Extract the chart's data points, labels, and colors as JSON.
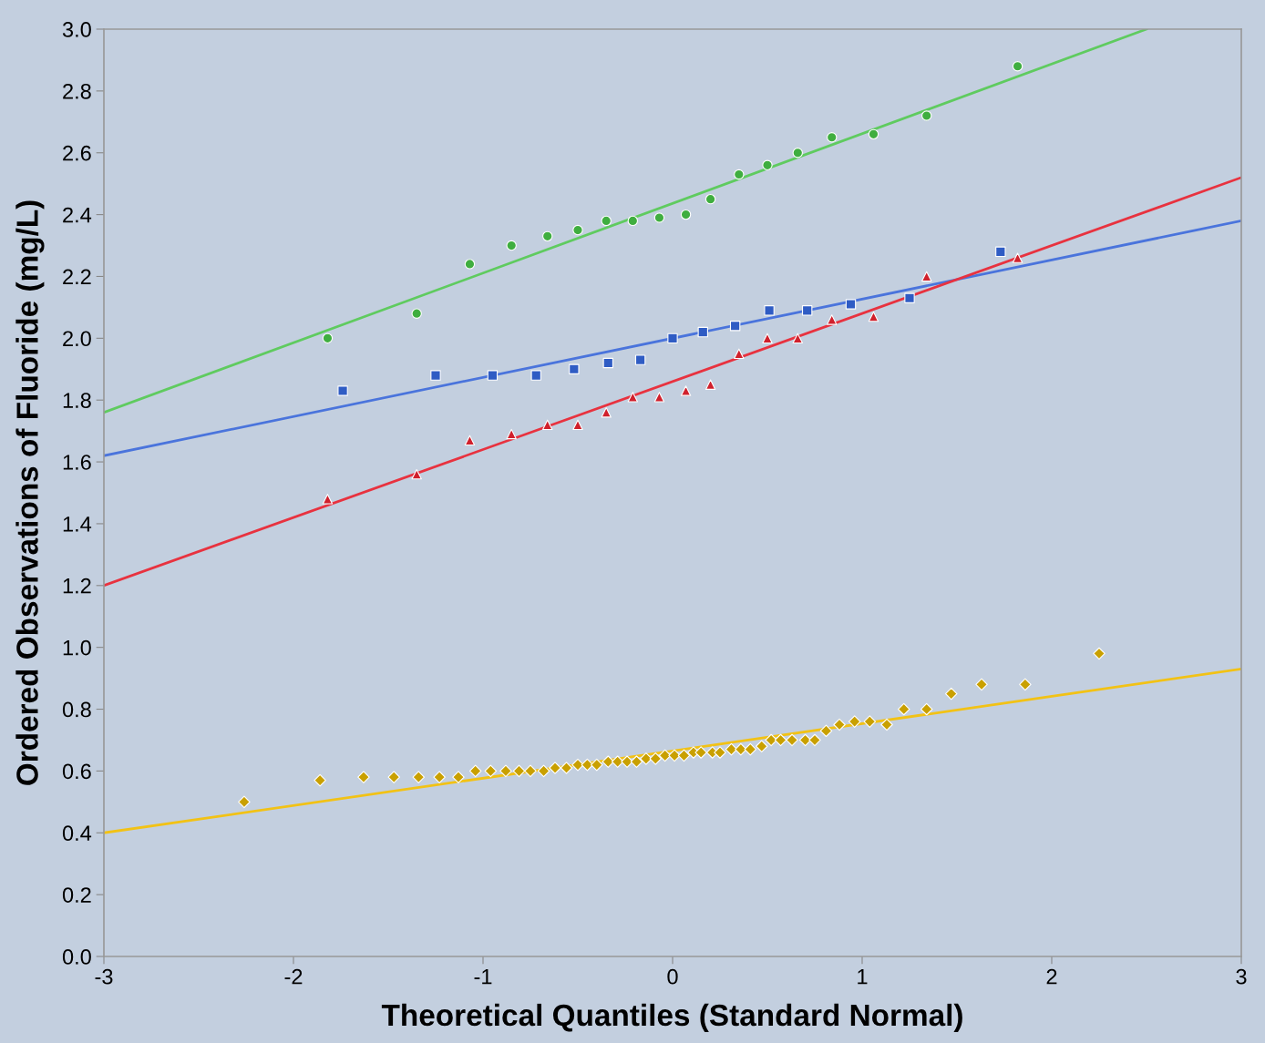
{
  "chart_data": {
    "type": "scatter",
    "xlabel": "Theoretical Quantiles (Standard Normal)",
    "ylabel": "Ordered Observations of Fluoride (mg/L)",
    "xlim": [
      -3,
      3
    ],
    "xticks": [
      -3,
      -2,
      -1,
      0,
      1,
      2,
      3
    ],
    "ylim": [
      0,
      3
    ],
    "yticks": [
      {
        "value": 0,
        "label": "0.0"
      },
      0.2,
      0.4,
      0.6,
      0.8,
      {
        "value": 1,
        "label": "1.0"
      },
      1.2,
      1.4,
      1.6,
      1.8,
      {
        "value": 2,
        "label": "2.0"
      },
      2.2,
      2.4,
      2.6,
      2.8,
      {
        "value": 3,
        "label": "3.0"
      }
    ],
    "grid": false,
    "series": [
      {
        "type": "line",
        "color": "#5fcb5f",
        "x": [
          -3,
          2.5
        ],
        "values": [
          1.76,
          3.0
        ]
      },
      {
        "type": "line",
        "color": "#4a74dc",
        "x": [
          -3,
          3
        ],
        "values": [
          1.62,
          2.38
        ]
      },
      {
        "type": "line",
        "color": "#e8323f",
        "x": [
          -3,
          3
        ],
        "values": [
          1.2,
          2.52
        ]
      },
      {
        "type": "line",
        "color": "#f2c215",
        "x": [
          -3,
          3
        ],
        "values": [
          0.4,
          0.93
        ]
      },
      {
        "marker": "circle",
        "color": "#3fae3f",
        "x": [
          -1.82,
          -1.35,
          -1.07,
          -0.85,
          -0.66,
          -0.5,
          -0.35,
          -0.21,
          -0.07,
          0.07,
          0.2,
          0.35,
          0.5,
          0.66,
          0.84,
          1.06,
          1.34,
          1.82
        ],
        "values": [
          2.0,
          2.08,
          2.24,
          2.3,
          2.33,
          2.35,
          2.38,
          2.38,
          2.39,
          2.4,
          2.45,
          2.53,
          2.56,
          2.6,
          2.65,
          2.66,
          2.72,
          2.88
        ]
      },
      {
        "marker": "square",
        "color": "#2f5cc4",
        "x": [
          -1.74,
          -1.25,
          -0.95,
          -0.72,
          -0.52,
          -0.34,
          -0.17,
          0.0,
          0.16,
          0.33,
          0.51,
          0.71,
          0.94,
          1.25,
          1.73
        ],
        "values": [
          1.83,
          1.88,
          1.88,
          1.88,
          1.9,
          1.92,
          1.93,
          2.0,
          2.02,
          2.04,
          2.09,
          2.09,
          2.11,
          2.13,
          2.28
        ]
      },
      {
        "marker": "triangle",
        "color": "#d0202c",
        "x": [
          -1.82,
          -1.35,
          -1.07,
          -0.85,
          -0.66,
          -0.5,
          -0.35,
          -0.21,
          -0.07,
          0.07,
          0.2,
          0.35,
          0.5,
          0.66,
          0.84,
          1.06,
          1.34,
          1.82
        ],
        "values": [
          1.48,
          1.56,
          1.67,
          1.69,
          1.72,
          1.72,
          1.76,
          1.81,
          1.81,
          1.83,
          1.85,
          1.95,
          2.0,
          2.0,
          2.06,
          2.07,
          2.2,
          2.26
        ]
      },
      {
        "marker": "diamond",
        "color": "#c9a000",
        "x": [
          -2.26,
          -1.86,
          -1.63,
          -1.47,
          -1.34,
          -1.23,
          -1.13,
          -1.04,
          -0.96,
          -0.88,
          -0.81,
          -0.75,
          -0.68,
          -0.62,
          -0.56,
          -0.5,
          -0.45,
          -0.4,
          -0.34,
          -0.29,
          -0.24,
          -0.19,
          -0.14,
          -0.09,
          -0.04,
          0.01,
          0.06,
          0.11,
          0.15,
          0.21,
          0.25,
          0.31,
          0.36,
          0.41,
          0.47,
          0.52,
          0.57,
          0.63,
          0.7,
          0.75,
          0.81,
          0.88,
          0.96,
          1.04,
          1.13,
          1.22,
          1.34,
          1.47,
          1.63,
          1.86,
          2.25
        ],
        "values": [
          0.5,
          0.57,
          0.58,
          0.58,
          0.58,
          0.58,
          0.58,
          0.6,
          0.6,
          0.6,
          0.6,
          0.6,
          0.6,
          0.61,
          0.61,
          0.62,
          0.62,
          0.62,
          0.63,
          0.63,
          0.63,
          0.63,
          0.64,
          0.64,
          0.65,
          0.65,
          0.65,
          0.66,
          0.66,
          0.66,
          0.66,
          0.67,
          0.67,
          0.67,
          0.68,
          0.7,
          0.7,
          0.7,
          0.7,
          0.7,
          0.73,
          0.75,
          0.76,
          0.76,
          0.75,
          0.8,
          0.8,
          0.85,
          0.88,
          0.88,
          0.98
        ]
      }
    ]
  }
}
